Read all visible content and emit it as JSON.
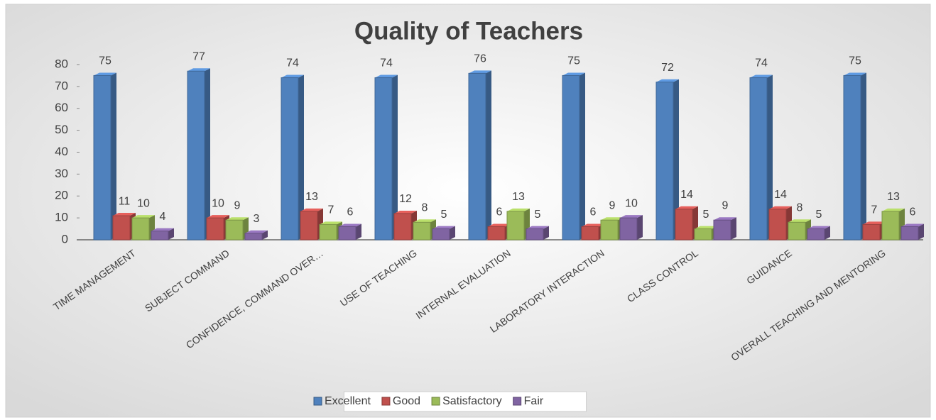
{
  "chart_data": {
    "type": "bar3d",
    "title": "Quality of Teachers",
    "categories": [
      "TIME MANAGEMENT",
      "SUBJECT COMMAND",
      "CONFIDENCE, COMMAND OVER…",
      "USE OF TEACHING",
      "INTERNAL EVALUATION",
      "LABORATORY INTERACTION",
      "CLASS CONTROL",
      "GUIDANCE",
      "OVERALL TEACHING AND MENTORING"
    ],
    "series": [
      {
        "name": "Excellent",
        "color": "#4f81bd",
        "values": [
          75,
          77,
          74,
          74,
          76,
          75,
          72,
          74,
          75
        ]
      },
      {
        "name": "Good",
        "color": "#c0504d",
        "values": [
          11,
          10,
          13,
          12,
          6,
          6,
          14,
          14,
          7
        ]
      },
      {
        "name": "Satisfactory",
        "color": "#9bbb59",
        "values": [
          10,
          9,
          7,
          8,
          13,
          9,
          5,
          8,
          13
        ]
      },
      {
        "name": "Fair",
        "color": "#8064a2",
        "values": [
          4,
          3,
          6,
          5,
          5,
          10,
          9,
          5,
          6
        ]
      }
    ],
    "ylim": [
      0,
      80
    ],
    "yticks": [
      0,
      10,
      20,
      30,
      40,
      50,
      60,
      70,
      80
    ],
    "legend": "bottom"
  }
}
